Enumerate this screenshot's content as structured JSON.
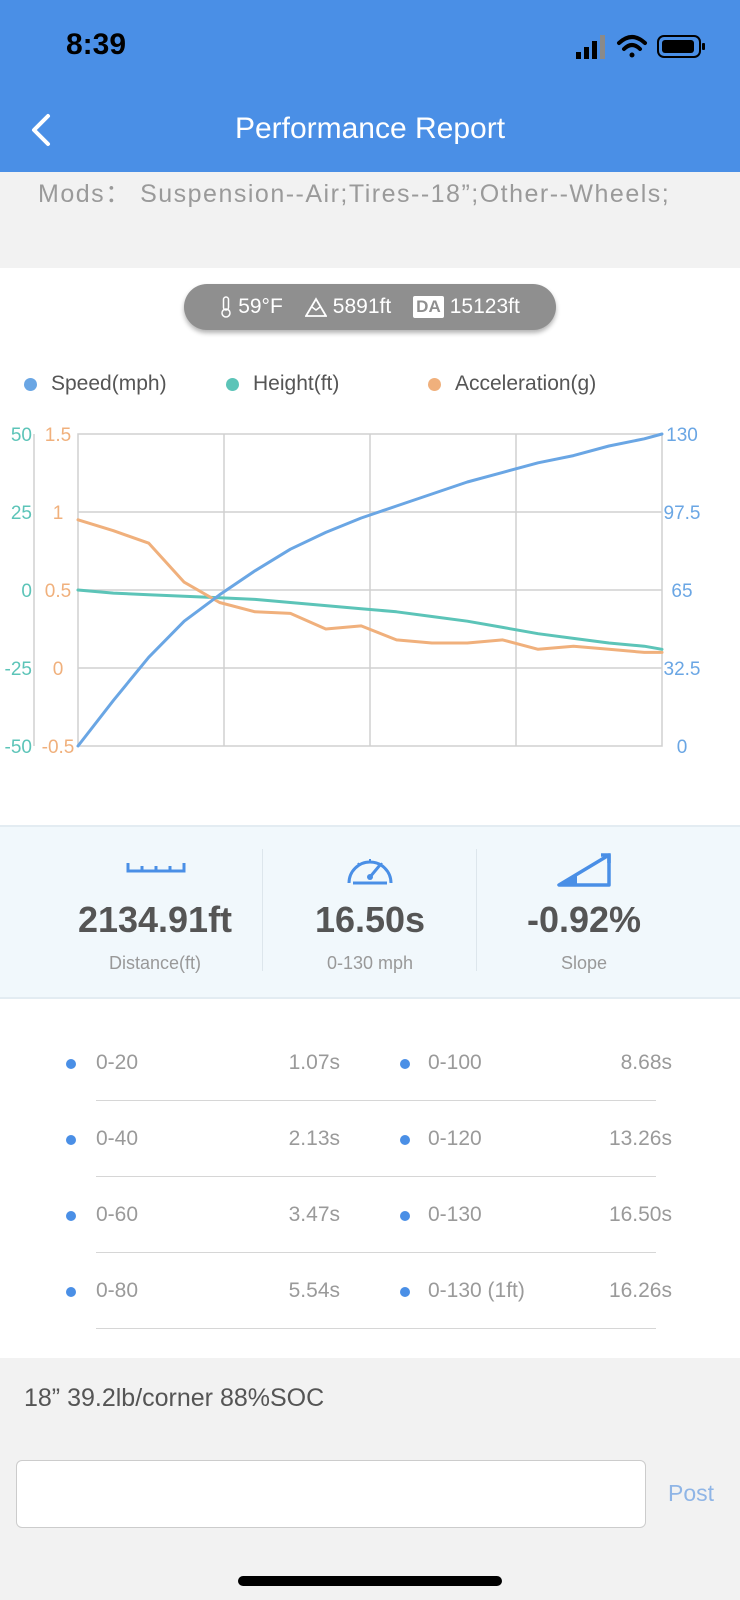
{
  "status_bar": {
    "time": "8:39"
  },
  "header": {
    "title": "Performance Report",
    "back_icon": "chevron-left-icon"
  },
  "mods": {
    "text": "Mods：  Suspension--Air;Tires--18”;Other--Wheels;"
  },
  "conditions": {
    "temperature": "59°F",
    "altitude": "5891ft",
    "da_label": "DA",
    "density_altitude": "15123ft"
  },
  "colors": {
    "header": "#4a8fe6",
    "speed": "#6aa6e4",
    "height": "#5cc4b8",
    "acceleration": "#f0b07c"
  },
  "legend": [
    {
      "label": "Speed(mph)",
      "color": "#6aa6e4"
    },
    {
      "label": "Height(ft)",
      "color": "#5cc4b8"
    },
    {
      "label": "Acceleration(g)",
      "color": "#f0b07c"
    }
  ],
  "chart_data": {
    "type": "line",
    "grid": true,
    "x": [
      0,
      1,
      2,
      3,
      4,
      5,
      6,
      7,
      8,
      9,
      10,
      11,
      12,
      13,
      14,
      15,
      16,
      16.5
    ],
    "height_axis": {
      "ticks": [
        "50",
        "25",
        "0",
        "-25",
        "-50"
      ],
      "range": [
        -50,
        50
      ]
    },
    "accel_axis": {
      "ticks": [
        "1.5",
        "1",
        "0.5",
        "0",
        "-0.5"
      ],
      "range": [
        -0.5,
        1.5
      ]
    },
    "speed_axis": {
      "ticks": [
        "130",
        "97.5",
        "65",
        "32.5",
        "0"
      ],
      "range": [
        0,
        130
      ]
    },
    "series": [
      {
        "name": "Speed(mph)",
        "axis": "right",
        "values": [
          0,
          19,
          37,
          52,
          63,
          73,
          82,
          89,
          95,
          100,
          105,
          110,
          114,
          118,
          121,
          125,
          128,
          130
        ]
      },
      {
        "name": "Height(ft)",
        "axis": "left",
        "values": [
          0,
          -1,
          -1.5,
          -2,
          -2.5,
          -3,
          -4,
          -5,
          -6,
          -7,
          -8.5,
          -10,
          -12,
          -14,
          -15.5,
          -17,
          -18,
          -19
        ]
      },
      {
        "name": "Acceleration(g)",
        "axis": "left2",
        "values": [
          0.95,
          0.88,
          0.8,
          0.55,
          0.42,
          0.36,
          0.35,
          0.25,
          0.27,
          0.18,
          0.16,
          0.16,
          0.18,
          0.12,
          0.14,
          0.12,
          0.1,
          0.1
        ]
      }
    ]
  },
  "stats": [
    {
      "icon": "ruler-icon",
      "value": "2134.91ft",
      "label": "Distance(ft)"
    },
    {
      "icon": "speedometer-icon",
      "value": "16.50s",
      "label": "0-130 mph"
    },
    {
      "icon": "slope-icon",
      "value": "-0.92%",
      "label": "Slope"
    }
  ],
  "times": [
    {
      "left": {
        "label": "0-20",
        "value": "1.07s"
      },
      "right": {
        "label": "0-100",
        "value": "8.68s"
      }
    },
    {
      "left": {
        "label": "0-40",
        "value": "2.13s"
      },
      "right": {
        "label": "0-120",
        "value": "13.26s"
      }
    },
    {
      "left": {
        "label": "0-60",
        "value": "3.47s"
      },
      "right": {
        "label": "0-130",
        "value": "16.50s"
      }
    },
    {
      "left": {
        "label": "0-80",
        "value": "5.54s"
      },
      "right": {
        "label": "0-130 (1ft)",
        "value": "16.26s"
      }
    }
  ],
  "note": {
    "text": "18” 39.2lb/corner 88%SOC"
  },
  "comment": {
    "placeholder": "",
    "post_label": "Post"
  }
}
